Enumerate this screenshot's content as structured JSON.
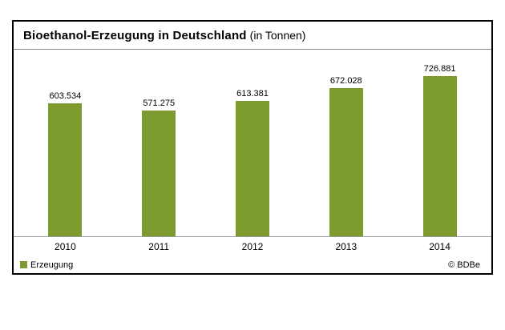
{
  "title": {
    "main": "Bioethanol-Erzeugung in Deutschland",
    "suffix": "(in Tonnen)"
  },
  "legend": {
    "label": "Erzeugung"
  },
  "credit": "© BDBe",
  "colors": {
    "bar": "#7d9b2f",
    "box_border": "#000000",
    "axis_line": "#9b9b9b"
  },
  "chart_data": {
    "type": "bar",
    "title": "Bioethanol-Erzeugung in Deutschland (in Tonnen)",
    "categories": [
      "2010",
      "2011",
      "2012",
      "2013",
      "2014"
    ],
    "values": [
      603534,
      571275,
      613381,
      672028,
      726881
    ],
    "value_labels": [
      "603.534",
      "571.275",
      "613.381",
      "672.028",
      "726.881"
    ],
    "series_name": "Erzeugung",
    "xlabel": "",
    "ylabel": "",
    "ylim": [
      0,
      800000
    ],
    "grid": false,
    "legend_position": "bottom-left",
    "bar_color": "#7d9b2f"
  }
}
